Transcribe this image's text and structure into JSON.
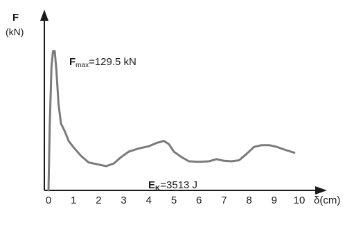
{
  "chart_data": {
    "type": "line",
    "ylabel": "F",
    "ylabel_unit": "(kN)",
    "xlabel": "δ(cm)",
    "xlim": [
      0,
      10
    ],
    "x_ticks": [
      "0",
      "1",
      "2",
      "3",
      "4",
      "5",
      "6",
      "7",
      "8",
      "9",
      "10"
    ],
    "line_color": "#7a7a7a",
    "grid": false,
    "annotations": {
      "fmax": {
        "main": "F",
        "sub": "max",
        "rest": "=129.5 kN"
      },
      "ek": {
        "main": "E",
        "sub": "K",
        "rest": "=3513 J"
      }
    },
    "series": [
      {
        "values": [
          [
            0.0,
            0.0
          ],
          [
            0.05,
            60.0
          ],
          [
            0.12,
            115.0
          ],
          [
            0.18,
            129.5
          ],
          [
            0.25,
            129.5
          ],
          [
            0.32,
            110.0
          ],
          [
            0.4,
            80.0
          ],
          [
            0.5,
            62.0
          ],
          [
            0.65,
            55.0
          ],
          [
            0.8,
            46.0
          ],
          [
            1.0,
            40.0
          ],
          [
            1.3,
            32.0
          ],
          [
            1.6,
            26.0
          ],
          [
            2.0,
            24.0
          ],
          [
            2.3,
            22.5
          ],
          [
            2.6,
            25.0
          ],
          [
            2.9,
            31.0
          ],
          [
            3.2,
            36.0
          ],
          [
            3.6,
            39.0
          ],
          [
            4.0,
            41.0
          ],
          [
            4.3,
            44.0
          ],
          [
            4.6,
            46.0
          ],
          [
            4.8,
            43.0
          ],
          [
            5.0,
            36.0
          ],
          [
            5.3,
            31.0
          ],
          [
            5.6,
            27.0
          ],
          [
            6.0,
            26.5
          ],
          [
            6.4,
            27.0
          ],
          [
            6.7,
            29.0
          ],
          [
            7.0,
            27.5
          ],
          [
            7.3,
            27.0
          ],
          [
            7.6,
            28.0
          ],
          [
            7.9,
            34.0
          ],
          [
            8.2,
            40.5
          ],
          [
            8.5,
            42.0
          ],
          [
            8.8,
            42.0
          ],
          [
            9.1,
            40.5
          ],
          [
            9.4,
            38.0
          ],
          [
            9.8,
            35.0
          ]
        ]
      }
    ]
  }
}
